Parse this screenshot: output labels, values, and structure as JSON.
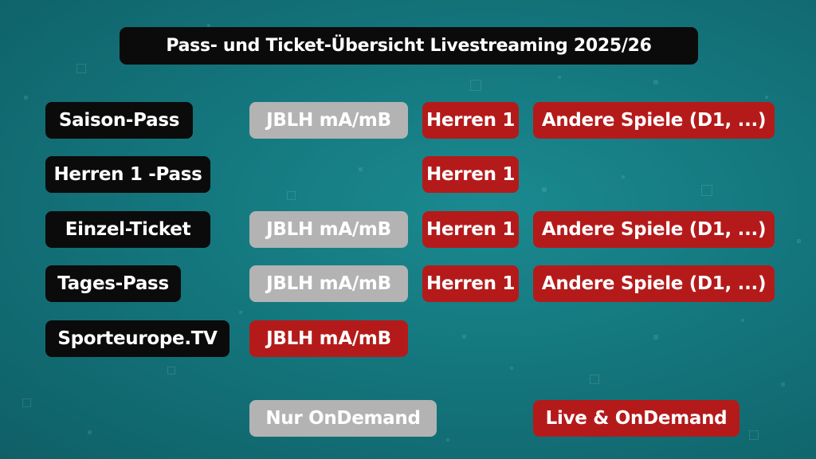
{
  "title": "Pass- und Ticket-Übersicht Livestreaming 2025/26",
  "rows": [
    {
      "label": "Saison-Pass",
      "jblh": "JBLH mA/mB",
      "herren": "Herren 1",
      "andere": "Andere Spiele (D1, ...)"
    },
    {
      "label": "Herren 1 -Pass",
      "herren": "Herren 1"
    },
    {
      "label": "Einzel-Ticket",
      "jblh": "JBLH mA/mB",
      "herren": "Herren 1",
      "andere": "Andere Spiele (D1, ...)"
    },
    {
      "label": "Tages-Pass",
      "jblh": "JBLH mA/mB",
      "herren": "Herren 1",
      "andere": "Andere Spiele (D1, ...)"
    },
    {
      "label": "Sporteurope.TV",
      "jblh": "JBLH mA/mB"
    }
  ],
  "legend": {
    "ondemand": "Nur OnDemand",
    "live": "Live & OnDemand"
  },
  "colors": {
    "background": "#137279",
    "label_bg": "#0b0b0b",
    "ondemand": "#b3b3b3",
    "live": "#b51a1a"
  }
}
